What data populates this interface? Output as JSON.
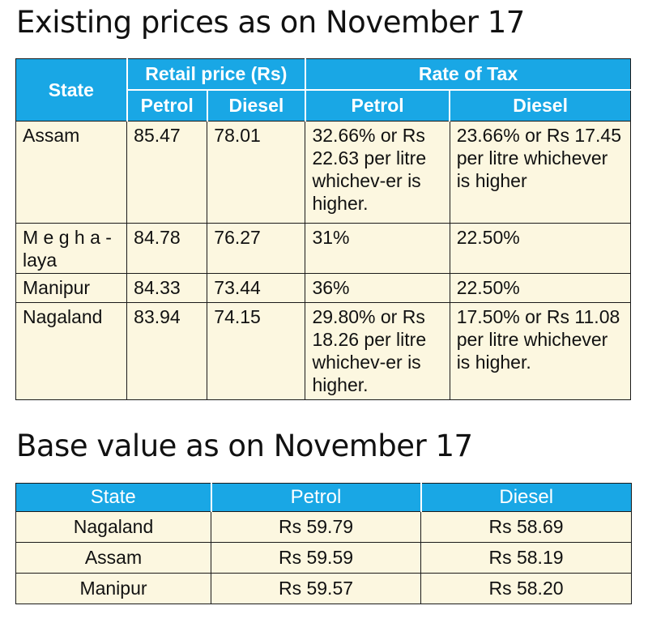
{
  "title1": "Existing prices as on November 17",
  "table1": {
    "header": {
      "state": "State",
      "retail_price": "Retail price (Rs)",
      "rate_of_tax": "Rate of Tax",
      "petrol": "Petrol",
      "diesel": "Diesel",
      "tax_petrol": "Petrol",
      "tax_diesel": "Diesel"
    },
    "rows": [
      {
        "state": "Assam",
        "petrol": "85.47",
        "diesel": "78.01",
        "tax_petrol": "32.66% or Rs 22.63 per litre whichev-er is higher.",
        "tax_diesel": "23.66% or Rs 17.45 per litre whichever is higher"
      },
      {
        "state": "M e g h a - laya",
        "petrol": "84.78",
        "diesel": "76.27",
        "tax_petrol": "31%",
        "tax_diesel": "22.50%"
      },
      {
        "state": "Manipur",
        "petrol": "84.33",
        "diesel": "73.44",
        "tax_petrol": "36%",
        "tax_diesel": "22.50%"
      },
      {
        "state": "Nagaland",
        "petrol": "83.94",
        "diesel": "74.15",
        "tax_petrol": "29.80% or Rs 18.26 per litre whichev-er is higher.",
        "tax_diesel": "17.50% or Rs 11.08 per litre whichever is higher."
      }
    ]
  },
  "title2": "Base value as on November 17",
  "table2": {
    "header": {
      "state": "State",
      "petrol": "Petrol",
      "diesel": "Diesel"
    },
    "rows": [
      {
        "state": "Nagaland",
        "petrol": "Rs 59.79",
        "diesel": "Rs 58.69"
      },
      {
        "state": "Assam",
        "petrol": "Rs 59.59",
        "diesel": "Rs 58.19"
      },
      {
        "state": "Manipur",
        "petrol": "Rs 59.57",
        "diesel": "Rs 58.20"
      }
    ]
  },
  "colors": {
    "header_bg": "#19a7e5",
    "cell_bg": "#fcf7e0"
  }
}
